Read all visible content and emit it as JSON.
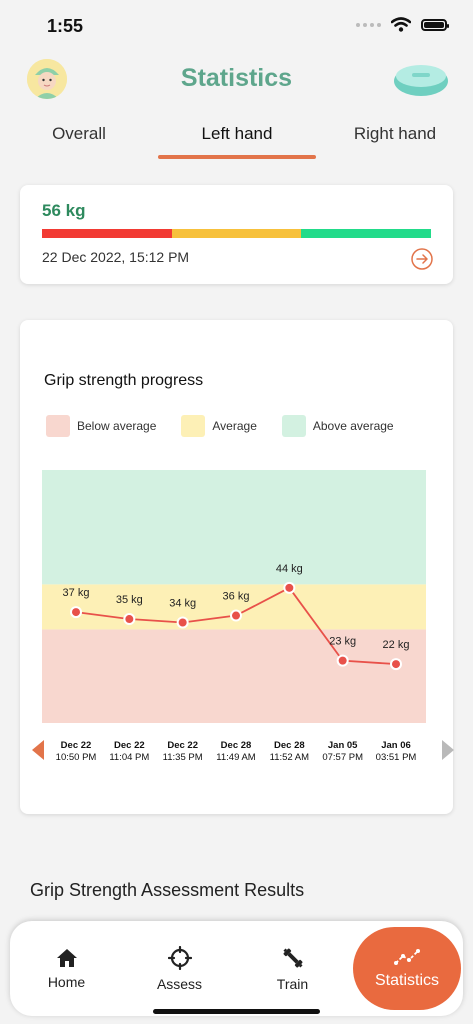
{
  "status_bar": {
    "time": "1:55"
  },
  "header": {
    "title": "Statistics"
  },
  "tabs": [
    {
      "label": "Overall",
      "active": false
    },
    {
      "label": "Left hand",
      "active": true
    },
    {
      "label": "Right hand",
      "active": false
    }
  ],
  "summary": {
    "value": "56 kg",
    "date": "22 Dec 2022, 15:12 PM",
    "bar_colors": [
      "#f23a33",
      "#f7c13c",
      "#22db8a"
    ]
  },
  "chart_card": {
    "title": "Grip strength progress",
    "legend": [
      {
        "label": "Below average",
        "color": "#f8d7cf"
      },
      {
        "label": "Average",
        "color": "#fdf0b6"
      },
      {
        "label": "Above average",
        "color": "#d3f1e1"
      }
    ]
  },
  "chart_data": {
    "type": "line",
    "x": [
      [
        "Dec 22",
        "10:50 PM"
      ],
      [
        "Dec 22",
        "11:04 PM"
      ],
      [
        "Dec 22",
        "11:35 PM"
      ],
      [
        "Dec 28",
        "11:49 AM"
      ],
      [
        "Dec 28",
        "11:52 AM"
      ],
      [
        "Jan 05",
        "07:57 PM"
      ],
      [
        "Jan 06",
        "03:51 PM"
      ]
    ],
    "series": [
      {
        "values": [
          37,
          35,
          34,
          36,
          44,
          23,
          22
        ],
        "labels": [
          "37 kg",
          "35 kg",
          "34 kg",
          "36 kg",
          "44 kg",
          "23 kg",
          "22 kg"
        ],
        "color": "#e8514a"
      }
    ],
    "bands": [
      {
        "label": "Below average",
        "from": 5,
        "to": 32,
        "color": "#f8d7cf"
      },
      {
        "label": "Average",
        "from": 32,
        "to": 45,
        "color": "#fdf0b6"
      },
      {
        "label": "Above average",
        "from": 45,
        "to": 78,
        "color": "#d3f1e1"
      }
    ],
    "ylim": [
      5,
      78
    ],
    "grid": false
  },
  "section": {
    "heading": "Grip Strength Assessment Results"
  },
  "nav": [
    {
      "label": "Home",
      "icon": "home-icon",
      "active": false
    },
    {
      "label": "Assess",
      "icon": "crosshair-icon",
      "active": false
    },
    {
      "label": "Train",
      "icon": "dumbbell-icon",
      "active": false
    },
    {
      "label": "Statistics",
      "icon": "trend-line-icon",
      "active": true
    }
  ]
}
